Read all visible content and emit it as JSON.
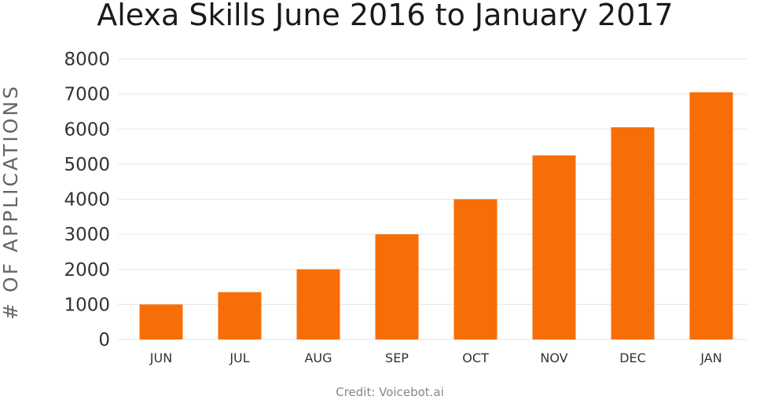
{
  "chart_data": {
    "type": "bar",
    "title": "Alexa Skills June 2016 to January 2017",
    "ylabel": "# OF APPLICATIONS",
    "xlabel": "",
    "categories": [
      "JUN",
      "JUL",
      "AUG",
      "SEP",
      "OCT",
      "NOV",
      "DEC",
      "JAN"
    ],
    "values": [
      1000,
      1350,
      2000,
      3000,
      4000,
      5250,
      6050,
      7050
    ],
    "yticks": [
      "0",
      "1000",
      "2000",
      "3000",
      "4000",
      "5000",
      "6000",
      "7000",
      "8000"
    ],
    "ylim": [
      0,
      8000
    ],
    "grid": true,
    "bar_color": "#f76e06",
    "credit": "Credit: Voicebot.ai"
  }
}
